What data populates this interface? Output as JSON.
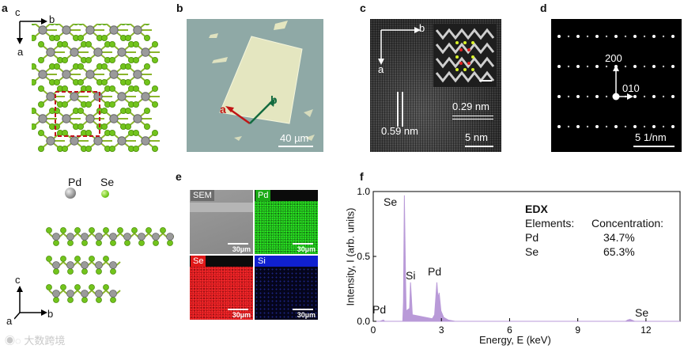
{
  "panels": {
    "a": {
      "label": "a",
      "axes_top": {
        "c": "c",
        "b": "b",
        "a": "a"
      },
      "legend": {
        "pd": "Pd",
        "se": "Se"
      },
      "axes_bottom": {
        "c": "c",
        "a": "a",
        "b": "b"
      }
    },
    "b": {
      "label": "b",
      "vec_a": "a",
      "vec_b": "b",
      "scale": "40 µm"
    },
    "c": {
      "label": "c",
      "vec_b": "b",
      "vec_a": "a",
      "spacing1": "0.29 nm",
      "spacing2": "0.59 nm",
      "scale": "5 nm"
    },
    "d": {
      "label": "d",
      "spot1": "200",
      "spot2": "010",
      "scale": "5 1/nm"
    },
    "e": {
      "label": "e",
      "maps": [
        {
          "name": "SEM",
          "scale": "30µm",
          "color": "#9a9a9a"
        },
        {
          "name": "Pd",
          "scale": "30µm",
          "color": "#22c41d"
        },
        {
          "name": "Se",
          "scale": "30µm",
          "color": "#e01818"
        },
        {
          "name": "Si",
          "scale": "30µm",
          "color": "#1020d0"
        }
      ]
    },
    "f": {
      "label": "f",
      "peaks": {
        "se1": "Se",
        "si": "Si",
        "pd1": "Pd",
        "pd0": "Pd",
        "se2": "Se"
      },
      "table": {
        "title": "EDX",
        "col1": "Elements:",
        "col2": "Concentration:",
        "rows": [
          {
            "el": "Pd",
            "conc": "34.7%"
          },
          {
            "el": "Se",
            "conc": "65.3%"
          }
        ]
      }
    }
  },
  "watermark": "大数跨境",
  "chart_data": {
    "type": "line",
    "title": "",
    "xlabel": "Energy, E (keV)",
    "ylabel": "Intensity, I (arb. units)",
    "xlim": [
      0,
      13.5
    ],
    "ylim": [
      0,
      1.0
    ],
    "xticks": [
      "0",
      "3",
      "6",
      "9",
      "12"
    ],
    "yticks": [
      "0.0",
      "0.5",
      "1.0"
    ],
    "series": [
      {
        "values": [
          [
            0,
            0.0
          ],
          [
            0.3,
            0.0
          ],
          [
            0.45,
            0.01
          ],
          [
            0.5,
            0.0
          ],
          [
            1.3,
            0.0
          ],
          [
            1.33,
            0.15
          ],
          [
            1.37,
            0.97
          ],
          [
            1.42,
            0.35
          ],
          [
            1.45,
            0.08
          ],
          [
            1.6,
            0.1
          ],
          [
            1.64,
            0.3
          ],
          [
            1.68,
            0.18
          ],
          [
            1.72,
            0.05
          ],
          [
            2.6,
            0.02
          ],
          [
            2.7,
            0.05
          ],
          [
            2.8,
            0.3
          ],
          [
            2.85,
            0.18
          ],
          [
            2.9,
            0.22
          ],
          [
            2.98,
            0.08
          ],
          [
            3.1,
            0.03
          ],
          [
            3.3,
            0.01
          ],
          [
            3.6,
            0.0
          ],
          [
            11.1,
            0.0
          ],
          [
            11.2,
            0.01
          ],
          [
            11.3,
            0.015
          ],
          [
            11.5,
            0.0
          ],
          [
            13.5,
            0.0
          ]
        ]
      }
    ],
    "color": "#b99ad8"
  }
}
